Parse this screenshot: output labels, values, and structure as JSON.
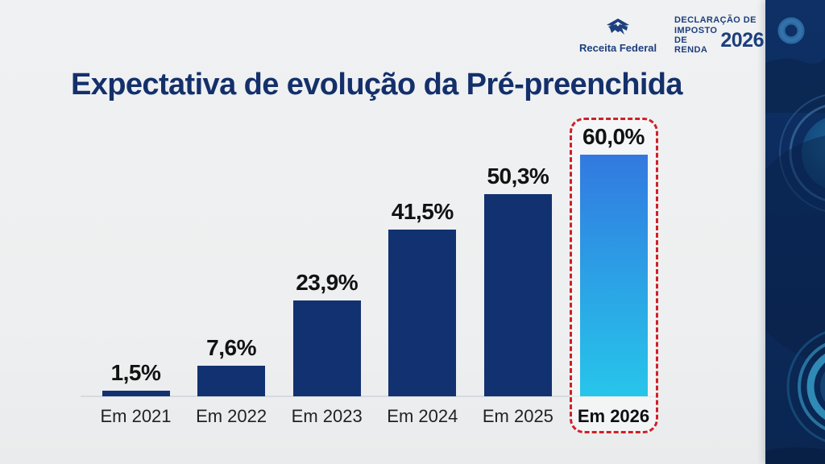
{
  "header": {
    "brand_name": "Receita Federal",
    "declaration": {
      "line1": "DECLARAÇÃO DE",
      "line2": "IMPOSTO",
      "line3": "DE RENDA",
      "year": "2026"
    }
  },
  "title": "Expectativa de evolução da Pré-preenchida",
  "chart_data": {
    "type": "bar",
    "title": "Expectativa de evolução da Pré-preenchida",
    "categories": [
      "Em 2021",
      "Em 2022",
      "Em 2023",
      "Em 2024",
      "Em 2025",
      "Em 2026"
    ],
    "values": [
      1.5,
      7.6,
      23.9,
      41.5,
      50.3,
      60.0
    ],
    "value_labels": [
      "1,5%",
      "7,6%",
      "23,9%",
      "41,5%",
      "50,3%",
      "60,0%"
    ],
    "xlabel": "",
    "ylabel": "",
    "ylim": [
      0,
      60
    ],
    "grid": false,
    "legend": false,
    "highlighted_index": 5,
    "bar_color": "#123170",
    "highlight_gradient_top": "#3279e0",
    "highlight_gradient_bottom": "#27c5ea",
    "highlight_border_color": "#cf2028"
  },
  "colors": {
    "background": "#eef0f1",
    "title_navy": "#14306b",
    "brand_navy": "#1d3f7d",
    "side_panel_navy": "#0c2c5c",
    "baseline_gray": "#d7dadd"
  },
  "icons": {
    "logo": "receita-federal-logo-icon",
    "rings": "decorative-rings-icon"
  }
}
